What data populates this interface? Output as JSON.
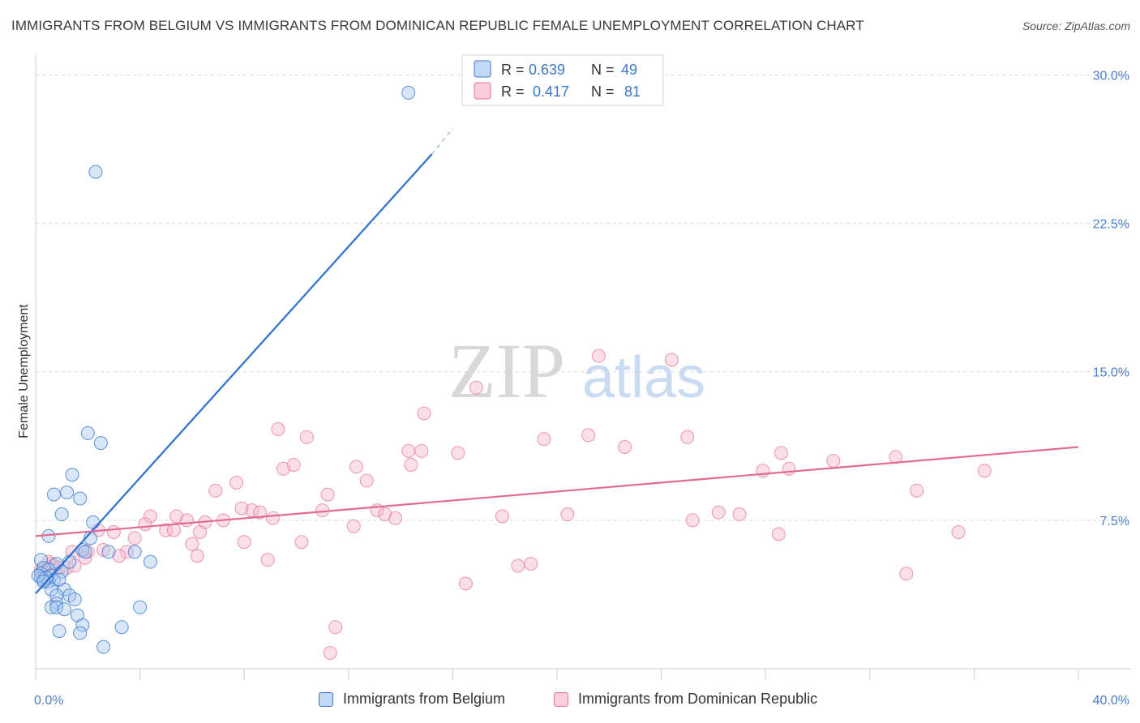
{
  "title": "IMMIGRANTS FROM BELGIUM VS IMMIGRANTS FROM DOMINICAN REPUBLIC FEMALE UNEMPLOYMENT CORRELATION CHART",
  "source": "Source: ZipAtlas.com",
  "watermark": {
    "zip": "ZIP",
    "atlas": "atlas"
  },
  "colors": {
    "blue": "#3a78c9",
    "blue_fill": "#a9c8f0",
    "blue_line": "#2c6fcf",
    "pink": "#e8749a",
    "pink_fill": "#f6b8cc",
    "pink_line": "#e26b95",
    "tick_text": "#4a7fd0",
    "grid": "#d9dce2"
  },
  "legend": {
    "r_label": "R =",
    "n_label": "N =",
    "belgium": {
      "r": "0.639",
      "n": "49"
    },
    "dominican": {
      "r": "0.417",
      "n": "81"
    }
  },
  "bottom_legend": {
    "belgium": "Immigrants from Belgium",
    "dominican": "Immigrants from Dominican Republic"
  },
  "chart_data": {
    "type": "scatter",
    "title": "IMMIGRANTS FROM BELGIUM VS IMMIGRANTS FROM DOMINICAN REPUBLIC FEMALE UNEMPLOYMENT CORRELATION CHART",
    "xlabel": "",
    "ylabel": "Female Unemployment",
    "xlim": [
      0,
      40
    ],
    "ylim": [
      0,
      31
    ],
    "x_tick_labels": [
      "0.0%",
      "40.0%"
    ],
    "y_ticks": [
      7.5,
      15.0,
      22.5,
      30.0
    ],
    "y_tick_labels": [
      "7.5%",
      "15.0%",
      "22.5%",
      "30.0%"
    ],
    "series": [
      {
        "name": "Immigrants from Belgium",
        "r": 0.639,
        "n": 49,
        "trend": {
          "x0": 0,
          "y0": 3.8,
          "x1": 15.2,
          "y1": 26.0,
          "dash_to": [
            16.0,
            27.3
          ]
        },
        "points": [
          [
            14.3,
            29.1
          ],
          [
            2.3,
            25.1
          ],
          [
            2.0,
            11.9
          ],
          [
            2.5,
            11.4
          ],
          [
            1.4,
            9.8
          ],
          [
            0.7,
            8.8
          ],
          [
            1.2,
            8.9
          ],
          [
            1.7,
            8.6
          ],
          [
            1.0,
            7.8
          ],
          [
            2.2,
            7.4
          ],
          [
            0.5,
            6.7
          ],
          [
            2.1,
            6.6
          ],
          [
            1.8,
            6.0
          ],
          [
            2.8,
            5.9
          ],
          [
            3.8,
            5.9
          ],
          [
            0.2,
            5.5
          ],
          [
            1.3,
            5.4
          ],
          [
            0.8,
            5.3
          ],
          [
            0.3,
            5.1
          ],
          [
            4.4,
            5.4
          ],
          [
            0.5,
            5.0
          ],
          [
            0.2,
            4.8
          ],
          [
            0.6,
            4.7
          ],
          [
            1.0,
            4.9
          ],
          [
            0.2,
            4.6
          ],
          [
            0.3,
            4.5
          ],
          [
            0.7,
            4.5
          ],
          [
            0.5,
            4.4
          ],
          [
            0.4,
            4.6
          ],
          [
            0.1,
            4.7
          ],
          [
            0.6,
            4.0
          ],
          [
            1.1,
            4.0
          ],
          [
            0.8,
            3.7
          ],
          [
            1.3,
            3.7
          ],
          [
            1.5,
            3.5
          ],
          [
            0.8,
            3.3
          ],
          [
            0.6,
            3.1
          ],
          [
            0.8,
            3.1
          ],
          [
            1.1,
            3.0
          ],
          [
            4.0,
            3.1
          ],
          [
            1.6,
            2.7
          ],
          [
            1.8,
            2.2
          ],
          [
            3.3,
            2.1
          ],
          [
            0.9,
            1.9
          ],
          [
            1.7,
            1.8
          ],
          [
            2.6,
            1.1
          ],
          [
            0.3,
            4.4
          ],
          [
            0.9,
            4.5
          ],
          [
            1.9,
            5.9
          ]
        ]
      },
      {
        "name": "Immigrants from Dominican Republic",
        "r": 0.417,
        "n": 81,
        "trend": {
          "x0": 0,
          "y0": 6.7,
          "x1": 40,
          "y1": 11.2
        },
        "points": [
          [
            21.6,
            15.8
          ],
          [
            24.4,
            15.6
          ],
          [
            16.9,
            14.2
          ],
          [
            14.9,
            12.9
          ],
          [
            9.3,
            12.1
          ],
          [
            10.4,
            11.7
          ],
          [
            19.5,
            11.6
          ],
          [
            21.2,
            11.8
          ],
          [
            25.0,
            11.7
          ],
          [
            22.6,
            11.2
          ],
          [
            14.3,
            11.0
          ],
          [
            14.8,
            11.0
          ],
          [
            16.2,
            10.9
          ],
          [
            28.6,
            10.9
          ],
          [
            33.0,
            10.7
          ],
          [
            30.6,
            10.5
          ],
          [
            9.9,
            10.3
          ],
          [
            9.5,
            10.1
          ],
          [
            12.3,
            10.2
          ],
          [
            14.4,
            10.3
          ],
          [
            27.9,
            10.0
          ],
          [
            28.9,
            10.1
          ],
          [
            36.4,
            10.0
          ],
          [
            7.7,
            9.4
          ],
          [
            12.7,
            9.5
          ],
          [
            6.9,
            9.0
          ],
          [
            11.2,
            8.8
          ],
          [
            33.8,
            9.0
          ],
          [
            8.3,
            8.0
          ],
          [
            8.6,
            7.9
          ],
          [
            11.0,
            8.0
          ],
          [
            13.1,
            8.0
          ],
          [
            13.4,
            7.8
          ],
          [
            7.9,
            8.1
          ],
          [
            4.4,
            7.7
          ],
          [
            5.4,
            7.7
          ],
          [
            5.8,
            7.5
          ],
          [
            6.5,
            7.4
          ],
          [
            7.2,
            7.5
          ],
          [
            9.1,
            7.6
          ],
          [
            12.2,
            7.2
          ],
          [
            13.8,
            7.6
          ],
          [
            17.9,
            7.7
          ],
          [
            20.4,
            7.8
          ],
          [
            25.2,
            7.5
          ],
          [
            26.2,
            7.9
          ],
          [
            27.0,
            7.8
          ],
          [
            4.2,
            7.3
          ],
          [
            3.0,
            6.9
          ],
          [
            5.0,
            7.0
          ],
          [
            5.3,
            7.0
          ],
          [
            6.3,
            6.9
          ],
          [
            2.4,
            7.0
          ],
          [
            3.8,
            6.6
          ],
          [
            28.5,
            6.8
          ],
          [
            35.4,
            6.9
          ],
          [
            6.0,
            6.3
          ],
          [
            8.0,
            6.4
          ],
          [
            10.2,
            6.4
          ],
          [
            1.4,
            5.9
          ],
          [
            2.6,
            6.0
          ],
          [
            3.5,
            5.9
          ],
          [
            6.2,
            5.7
          ],
          [
            1.9,
            5.6
          ],
          [
            3.2,
            5.7
          ],
          [
            8.9,
            5.5
          ],
          [
            0.6,
            5.3
          ],
          [
            0.9,
            5.1
          ],
          [
            1.2,
            5.1
          ],
          [
            0.3,
            5.0
          ],
          [
            0.5,
            5.4
          ],
          [
            18.5,
            5.2
          ],
          [
            19.0,
            5.3
          ],
          [
            33.4,
            4.8
          ],
          [
            16.5,
            4.3
          ],
          [
            11.5,
            2.1
          ],
          [
            11.3,
            0.8
          ],
          [
            0.2,
            5.0
          ],
          [
            0.7,
            5.2
          ],
          [
            1.5,
            5.2
          ],
          [
            2.0,
            5.9
          ]
        ]
      }
    ]
  }
}
